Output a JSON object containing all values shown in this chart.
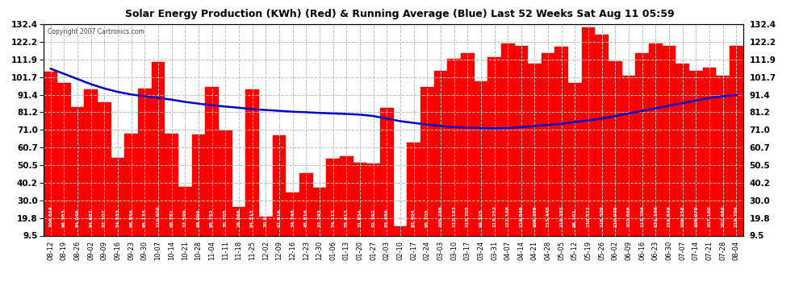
{
  "title": "Solar Energy Production (KWh) (Red) & Running Average (Blue) Last 52 Weeks Sat Aug 11 05:59",
  "copyright": "Copyright 2007 Cartronics.com",
  "bar_color": "#ff0000",
  "line_color": "#0000cc",
  "background_color": "#ffffff",
  "plot_bg_color": "#ffffff",
  "yticks": [
    9.5,
    19.8,
    30.0,
    40.2,
    50.5,
    60.7,
    71.0,
    81.2,
    91.4,
    101.7,
    111.9,
    122.2,
    132.4
  ],
  "categories": [
    "08-12",
    "08-19",
    "08-26",
    "09-02",
    "09-09",
    "09-16",
    "09-23",
    "09-30",
    "10-07",
    "10-14",
    "10-21",
    "10-28",
    "11-04",
    "11-11",
    "11-18",
    "11-25",
    "12-02",
    "12-09",
    "12-16",
    "12-23",
    "12-30",
    "01-06",
    "01-13",
    "01-20",
    "01-27",
    "02-03",
    "02-10",
    "02-17",
    "02-24",
    "03-03",
    "03-10",
    "03-17",
    "03-24",
    "03-31",
    "04-07",
    "04-14",
    "04-21",
    "04-28",
    "05-05",
    "05-12",
    "05-19",
    "05-26",
    "06-02",
    "06-09",
    "06-16",
    "06-23",
    "06-30",
    "07-07",
    "07-14",
    "07-21",
    "07-28",
    "08-04"
  ],
  "values": [
    104.664,
    98.383,
    84.049,
    94.682,
    87.207,
    54.533,
    68.856,
    95.135,
    110.606,
    68.781,
    37.599,
    68.099,
    95.752,
    70.705,
    26.086,
    94.313,
    20.698,
    67.916,
    34.748,
    45.816,
    37.293,
    54.113,
    55.613,
    51.954,
    51.392,
    83.486,
    14.799,
    63.404,
    95.705,
    105.286,
    112.193,
    115.705,
    99.325,
    113.252,
    121.166,
    119.849,
    109.258,
    115.446,
    119.385,
    98.101,
    130.522,
    126.509,
    110.949,
    102.666,
    115.704,
    121.166,
    119.849,
    109.258,
    105.079,
    107.16,
    102.666,
    119.704
  ],
  "running_avg": [
    106.5,
    103.5,
    100.5,
    97.5,
    95.0,
    93.0,
    91.5,
    90.5,
    89.5,
    88.5,
    87.2,
    86.2,
    85.2,
    84.5,
    83.8,
    83.0,
    82.5,
    82.0,
    81.5,
    81.2,
    80.8,
    80.5,
    80.2,
    79.8,
    79.0,
    77.5,
    76.0,
    75.0,
    74.0,
    73.2,
    72.5,
    72.2,
    72.0,
    71.8,
    72.0,
    72.5,
    73.2,
    73.8,
    74.5,
    75.5,
    76.5,
    77.5,
    79.0,
    80.5,
    82.0,
    83.5,
    85.0,
    86.5,
    88.0,
    89.5,
    90.5,
    91.2
  ],
  "ymin": 9.5,
  "ymax": 132.4
}
